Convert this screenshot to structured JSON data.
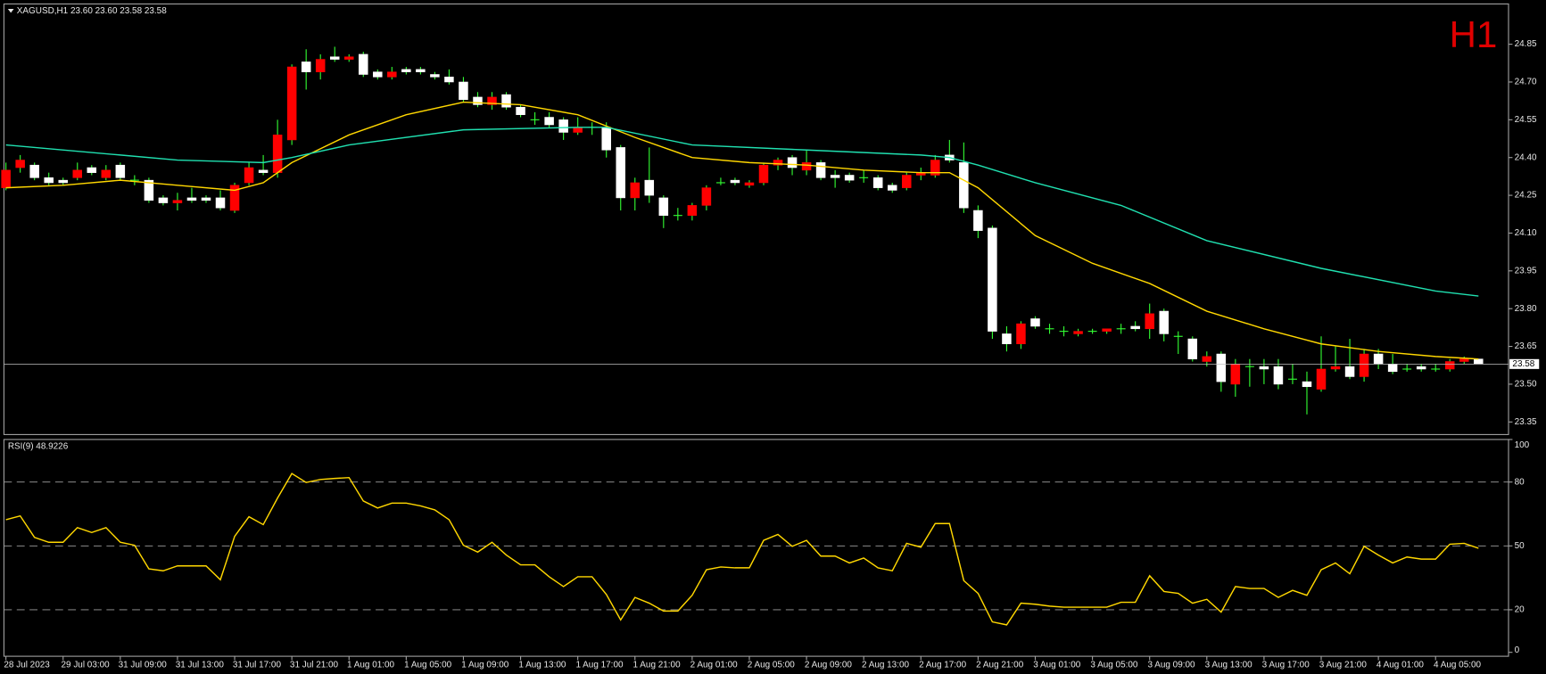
{
  "badge": "H1",
  "chart_data": [
    {
      "type": "candlestick",
      "title": "XAGUSD,H1 23.60 23.60 23.58 23.58",
      "categories": [
        "28 Jul 2023",
        null,
        null,
        null,
        "29 Jul 03:00",
        null,
        null,
        null,
        "31 Jul 09:00",
        null,
        null,
        null,
        "31 Jul 13:00",
        null,
        null,
        null,
        "31 Jul 17:00",
        null,
        null,
        null,
        "31 Jul 21:00",
        null,
        null,
        null,
        "1 Aug 01:00",
        null,
        null,
        null,
        "1 Aug 05:00",
        null,
        null,
        null,
        "1 Aug 09:00",
        null,
        null,
        null,
        "1 Aug 13:00",
        null,
        null,
        null,
        "1 Aug 17:00",
        null,
        null,
        null,
        "1 Aug 21:00",
        null,
        null,
        null,
        "2 Aug 01:00",
        null,
        null,
        null,
        "2 Aug 05:00",
        null,
        null,
        null,
        "2 Aug 09:00",
        null,
        null,
        null,
        "2 Aug 13:00",
        null,
        null,
        null,
        "2 Aug 17:00",
        null,
        null,
        null,
        "2 Aug 21:00",
        null,
        null,
        null,
        "3 Aug 01:00",
        null,
        null,
        null,
        "3 Aug 05:00",
        null,
        null,
        null,
        "3 Aug 09:00",
        null,
        null,
        null,
        "3 Aug 13:00",
        null,
        null,
        null,
        "3 Aug 17:00",
        null,
        null,
        null,
        "3 Aug 21:00",
        null,
        null,
        null,
        "4 Aug 01:00",
        null,
        null,
        null,
        "4 Aug 05:00",
        null,
        null,
        null
      ],
      "open": [
        24.28,
        24.36,
        24.37,
        24.32,
        24.31,
        24.32,
        24.36,
        24.32,
        24.37,
        24.31,
        24.31,
        24.24,
        24.22,
        24.24,
        24.24,
        24.24,
        24.19,
        24.3,
        24.35,
        24.34,
        24.47,
        24.78,
        24.74,
        24.8,
        24.79,
        24.81,
        24.74,
        24.72,
        24.75,
        24.75,
        24.73,
        24.72,
        24.7,
        24.64,
        24.61,
        24.65,
        24.6,
        24.55,
        24.56,
        24.55,
        24.5,
        24.52,
        24.52,
        24.44,
        24.24,
        24.31,
        24.24,
        24.17,
        24.17,
        24.21,
        24.3,
        24.31,
        24.29,
        24.3,
        24.37,
        24.4,
        24.35,
        24.38,
        24.33,
        24.33,
        24.32,
        24.32,
        24.29,
        24.28,
        24.33,
        24.33,
        24.41,
        24.38,
        24.19,
        24.12,
        23.7,
        23.66,
        23.76,
        23.72,
        23.71,
        23.7,
        23.71,
        23.71,
        23.72,
        23.73,
        23.72,
        23.79,
        23.69,
        23.68,
        23.59,
        23.62,
        23.5,
        23.57,
        23.57,
        23.57,
        23.52,
        23.51,
        23.48,
        23.56,
        23.57,
        23.53,
        23.62,
        23.58,
        23.56,
        23.57,
        23.56,
        23.56,
        23.59,
        23.6
      ],
      "high": [
        24.38,
        24.41,
        24.38,
        24.34,
        24.32,
        24.38,
        24.37,
        24.37,
        24.38,
        24.33,
        24.32,
        24.25,
        24.26,
        24.28,
        24.25,
        24.27,
        24.3,
        24.38,
        24.41,
        24.55,
        24.77,
        24.83,
        24.81,
        24.84,
        24.81,
        24.82,
        24.75,
        24.76,
        24.76,
        24.76,
        24.74,
        24.75,
        24.72,
        24.66,
        24.66,
        24.66,
        24.61,
        24.58,
        24.58,
        24.56,
        24.56,
        24.54,
        24.54,
        24.45,
        24.32,
        24.44,
        24.25,
        24.2,
        24.22,
        24.29,
        24.32,
        24.32,
        24.31,
        24.38,
        24.4,
        24.41,
        24.43,
        24.39,
        24.35,
        24.34,
        24.35,
        24.33,
        24.3,
        24.34,
        24.36,
        24.41,
        24.47,
        24.46,
        24.21,
        24.13,
        23.73,
        23.75,
        23.77,
        23.74,
        23.73,
        23.72,
        23.72,
        23.72,
        23.74,
        23.75,
        23.82,
        23.8,
        23.71,
        23.69,
        23.63,
        23.63,
        23.6,
        23.6,
        23.6,
        23.6,
        23.58,
        23.55,
        23.69,
        23.65,
        23.68,
        23.64,
        23.64,
        23.62,
        23.58,
        23.58,
        23.58,
        23.6,
        23.61,
        23.6
      ],
      "low": [
        24.27,
        24.34,
        24.31,
        24.29,
        24.29,
        24.31,
        24.33,
        24.31,
        24.31,
        24.29,
        24.22,
        24.21,
        24.19,
        24.22,
        24.22,
        24.19,
        24.18,
        24.29,
        24.33,
        24.32,
        24.45,
        24.67,
        24.71,
        24.78,
        24.78,
        24.72,
        24.71,
        24.71,
        24.73,
        24.73,
        24.71,
        24.69,
        24.62,
        24.6,
        24.59,
        24.59,
        24.56,
        24.53,
        24.52,
        24.47,
        24.49,
        24.49,
        24.4,
        24.19,
        24.19,
        24.22,
        24.12,
        24.15,
        24.15,
        24.19,
        24.29,
        24.29,
        24.28,
        24.29,
        24.35,
        24.33,
        24.33,
        24.31,
        24.28,
        24.3,
        24.3,
        24.27,
        24.26,
        24.27,
        24.31,
        24.32,
        24.38,
        24.18,
        24.08,
        23.68,
        23.63,
        23.64,
        23.72,
        23.7,
        23.69,
        23.69,
        23.7,
        23.7,
        23.7,
        23.71,
        23.68,
        23.67,
        23.62,
        23.59,
        23.57,
        23.47,
        23.45,
        23.49,
        23.5,
        23.48,
        23.5,
        23.38,
        23.47,
        23.55,
        23.52,
        23.51,
        23.56,
        23.54,
        23.55,
        23.55,
        23.55,
        23.55,
        23.58,
        23.58
      ],
      "close": [
        24.35,
        24.39,
        24.32,
        24.3,
        24.3,
        24.35,
        24.34,
        24.35,
        24.32,
        24.31,
        24.23,
        24.22,
        24.23,
        24.23,
        24.23,
        24.2,
        24.29,
        24.36,
        24.34,
        24.49,
        24.76,
        24.74,
        24.79,
        24.79,
        24.8,
        24.73,
        24.72,
        24.74,
        24.74,
        24.74,
        24.72,
        24.7,
        24.63,
        24.61,
        24.64,
        24.6,
        24.57,
        24.55,
        24.53,
        24.5,
        24.52,
        24.52,
        24.43,
        24.24,
        24.3,
        24.25,
        24.17,
        24.17,
        24.21,
        24.28,
        24.3,
        24.3,
        24.3,
        24.37,
        24.39,
        24.36,
        24.38,
        24.32,
        24.32,
        24.31,
        24.32,
        24.28,
        24.27,
        24.33,
        24.34,
        24.39,
        24.39,
        24.2,
        24.11,
        23.71,
        23.66,
        23.74,
        23.73,
        23.72,
        23.71,
        23.71,
        23.71,
        23.72,
        23.72,
        23.72,
        23.78,
        23.7,
        23.69,
        23.6,
        23.61,
        23.51,
        23.58,
        23.57,
        23.56,
        23.5,
        23.52,
        23.49,
        23.56,
        23.57,
        23.53,
        23.62,
        23.58,
        23.55,
        23.56,
        23.56,
        23.56,
        23.59,
        23.6,
        23.58
      ],
      "up_color": "#ff0000",
      "down_color": "#ffffff",
      "wick_color": "#33ff33",
      "overlays": [
        {
          "color": "#ffd700",
          "x": [
            0,
            4,
            8,
            12,
            16,
            18,
            20,
            24,
            28,
            32,
            36,
            40,
            44,
            48,
            52,
            56,
            60,
            64,
            66,
            68,
            72,
            76,
            80,
            84,
            88,
            92,
            96,
            100,
            103
          ],
          "values": [
            24.28,
            24.29,
            24.31,
            24.29,
            24.27,
            24.3,
            24.38,
            24.49,
            24.57,
            24.62,
            24.61,
            24.57,
            24.48,
            24.4,
            24.38,
            24.37,
            24.35,
            24.34,
            24.34,
            24.28,
            24.09,
            23.98,
            23.9,
            23.79,
            23.72,
            23.66,
            23.63,
            23.61,
            23.6
          ]
        },
        {
          "color": "#20e0b0",
          "x": [
            0,
            8,
            12,
            18,
            20,
            24,
            32,
            40,
            42,
            48,
            56,
            64,
            66,
            68,
            72,
            78,
            84,
            92,
            100,
            103
          ],
          "values": [
            24.45,
            24.41,
            24.39,
            24.38,
            24.4,
            24.45,
            24.51,
            24.52,
            24.52,
            24.45,
            24.43,
            24.41,
            24.4,
            24.37,
            24.3,
            24.21,
            24.07,
            23.96,
            23.87,
            23.85
          ]
        }
      ],
      "current_price": 23.58,
      "ylim": [
        23.3,
        25.01
      ],
      "yticks": [
        24.85,
        {
          "value": 24.7,
          "label": "24.70"
        },
        24.55,
        {
          "value": 24.4,
          "label": "24.40"
        },
        24.25,
        {
          "value": 24.1,
          "label": "24.10"
        },
        23.95,
        {
          "value": 23.8,
          "label": "23.80"
        },
        23.65,
        {
          "value": 23.5,
          "label": "23.50"
        },
        23.35
      ],
      "grid": false
    },
    {
      "type": "line",
      "title": "RSI(9) 48.9226",
      "color": "#ffd700",
      "values": [
        62.3,
        64.1,
        54.0,
        51.7,
        51.7,
        58.6,
        56.3,
        58.6,
        51.7,
        50.3,
        39.2,
        38.3,
        40.6,
        40.6,
        40.6,
        34.1,
        54.5,
        63.7,
        60.0,
        72.5,
        84.0,
        79.8,
        81.2,
        81.7,
        82.1,
        71.1,
        67.8,
        70.1,
        70.1,
        68.8,
        66.9,
        62.3,
        50.3,
        47.1,
        51.7,
        45.7,
        41.1,
        41.1,
        35.5,
        30.9,
        35.5,
        35.5,
        27.2,
        15.2,
        25.8,
        23.1,
        19.4,
        19.4,
        26.8,
        38.8,
        40.1,
        39.7,
        39.7,
        52.6,
        55.4,
        49.8,
        52.6,
        45.2,
        45.2,
        42.0,
        44.3,
        39.7,
        38.3,
        51.2,
        49.4,
        60.5,
        60.5,
        33.7,
        27.7,
        14.3,
        12.9,
        23.1,
        22.6,
        21.7,
        21.2,
        21.2,
        21.2,
        21.2,
        23.5,
        23.5,
        36.0,
        28.6,
        27.7,
        23.1,
        24.9,
        18.9,
        30.9,
        30.0,
        30.0,
        25.8,
        29.1,
        26.8,
        38.8,
        42.0,
        36.9,
        49.8,
        45.7,
        42.0,
        44.8,
        43.8,
        43.8,
        50.8,
        51.2,
        48.92
      ],
      "levels": [
        20,
        50,
        80
      ],
      "ylim": [
        0,
        100
      ],
      "yticks": [
        0,
        20,
        50,
        80,
        100
      ]
    }
  ]
}
